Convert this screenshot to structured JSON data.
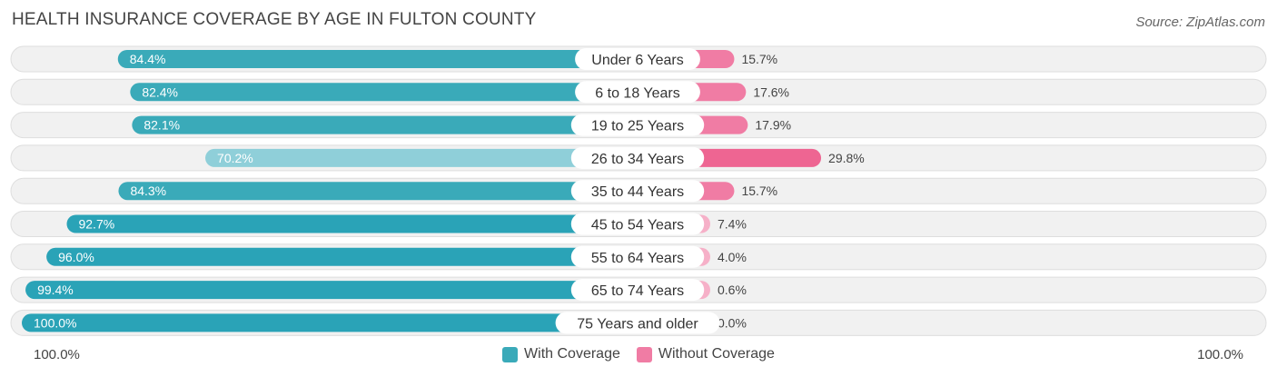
{
  "title": "HEALTH INSURANCE COVERAGE BY AGE IN FULTON COUNTY",
  "source": "Source: ZipAtlas.com",
  "colors": {
    "with_coverage": "#3aaab9",
    "with_coverage_dark": "#2aa3b7",
    "with_coverage_light": "#8fcfd9",
    "without_coverage": "#f07ca4",
    "without_coverage_dark": "#ee6592",
    "without_coverage_light": "#f6b0c8"
  },
  "axis": {
    "left_label": "100.0%",
    "right_label": "100.0%"
  },
  "legend": {
    "with_label": "With Coverage",
    "without_label": "Without Coverage"
  },
  "chart_data": {
    "type": "bar",
    "orientation": "diverging-horizontal",
    "categories": [
      "Under 6 Years",
      "6 to 18 Years",
      "19 to 25 Years",
      "26 to 34 Years",
      "35 to 44 Years",
      "45 to 54 Years",
      "55 to 64 Years",
      "65 to 74 Years",
      "75 Years and older"
    ],
    "series": [
      {
        "name": "With Coverage",
        "values": [
          84.4,
          82.4,
          82.1,
          70.2,
          84.3,
          92.7,
          96.0,
          99.4,
          100.0
        ],
        "labels": [
          "84.4%",
          "82.4%",
          "82.1%",
          "70.2%",
          "84.3%",
          "92.7%",
          "96.0%",
          "99.4%",
          "100.0%"
        ]
      },
      {
        "name": "Without Coverage",
        "values": [
          15.7,
          17.6,
          17.9,
          29.8,
          15.7,
          7.4,
          4.0,
          0.6,
          0.0
        ],
        "labels": [
          "15.7%",
          "17.6%",
          "17.9%",
          "29.8%",
          "15.7%",
          "7.4%",
          "4.0%",
          "0.6%",
          "0.0%"
        ]
      }
    ],
    "xlim": [
      -100,
      100
    ],
    "title": "HEALTH INSURANCE COVERAGE BY AGE IN FULTON COUNTY",
    "legend_position": "bottom"
  }
}
